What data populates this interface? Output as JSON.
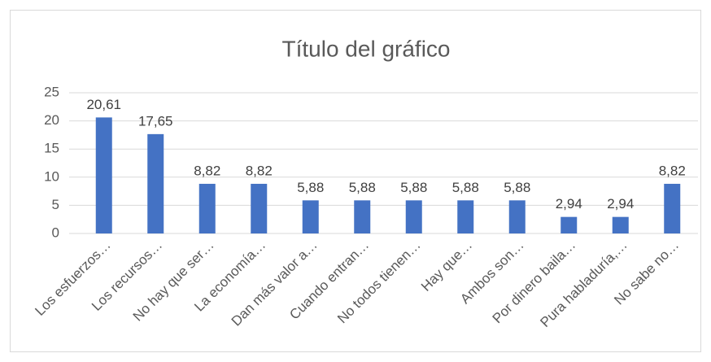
{
  "chart_data": {
    "type": "bar",
    "title": "Título del gráfico",
    "categories": [
      "Los esfuerzos…",
      "Los recursos…",
      "No hay que ser…",
      "La economía…",
      "Dan más valor a…",
      "Cuando entran…",
      "No todos tienen…",
      "Hay que…",
      "Ambos son…",
      "Por dinero baila…",
      "Pura habladuría,…",
      "No sabe no…"
    ],
    "values": [
      20.61,
      17.65,
      8.82,
      8.82,
      5.88,
      5.88,
      5.88,
      5.88,
      5.88,
      2.94,
      2.94,
      8.82
    ],
    "value_labels": [
      "20,61",
      "17,65",
      "8,82",
      "8,82",
      "5,88",
      "5,88",
      "5,88",
      "5,88",
      "5,88",
      "2,94",
      "2,94",
      "8,82"
    ],
    "color": "#4472c4",
    "ylim": [
      0,
      25
    ],
    "yticks": [
      0,
      5,
      10,
      15,
      20,
      25
    ],
    "grid": true
  }
}
